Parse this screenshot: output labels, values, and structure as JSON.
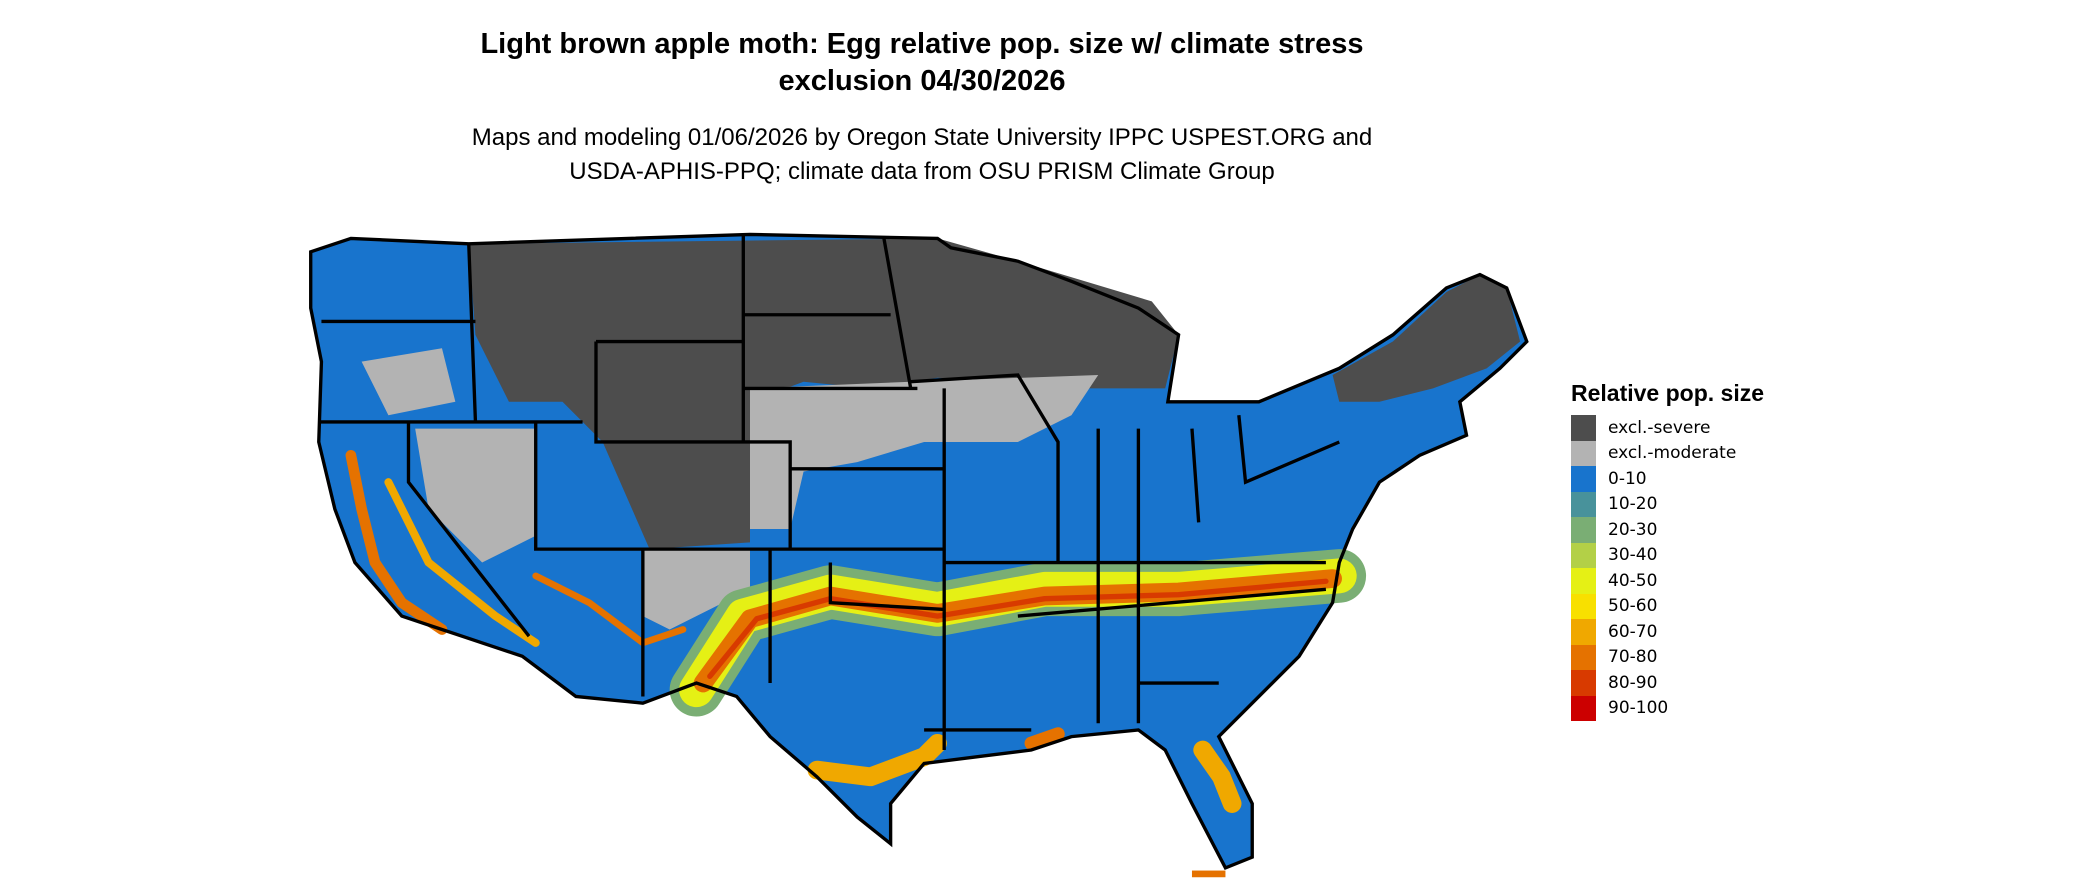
{
  "title": {
    "line1": "Light brown apple moth: Egg relative pop. size w/ climate stress",
    "line2": "exclusion 04/30/2026"
  },
  "subtitle": {
    "line1": "Maps and modeling 01/06/2026 by Oregon State University IPPC USPEST.ORG and",
    "line2": "USDA-APHIS-PPQ; climate data from OSU PRISM Climate Group"
  },
  "legend": {
    "title": "Relative pop. size",
    "items": [
      {
        "label": "excl.-severe",
        "color": "#4d4d4d"
      },
      {
        "label": "excl.-moderate",
        "color": "#b3b3b3"
      },
      {
        "label": "0-10",
        "color": "#1874cd"
      },
      {
        "label": "10-20",
        "color": "#48929b"
      },
      {
        "label": "20-30",
        "color": "#7aae74"
      },
      {
        "label": "30-40",
        "color": "#b3d047"
      },
      {
        "label": "40-50",
        "color": "#e5f015"
      },
      {
        "label": "50-60",
        "color": "#f8e000"
      },
      {
        "label": "60-70",
        "color": "#f0a800"
      },
      {
        "label": "70-80",
        "color": "#e57200"
      },
      {
        "label": "80-90",
        "color": "#d83a00"
      },
      {
        "label": "90-100",
        "color": "#cc0000"
      }
    ]
  }
}
